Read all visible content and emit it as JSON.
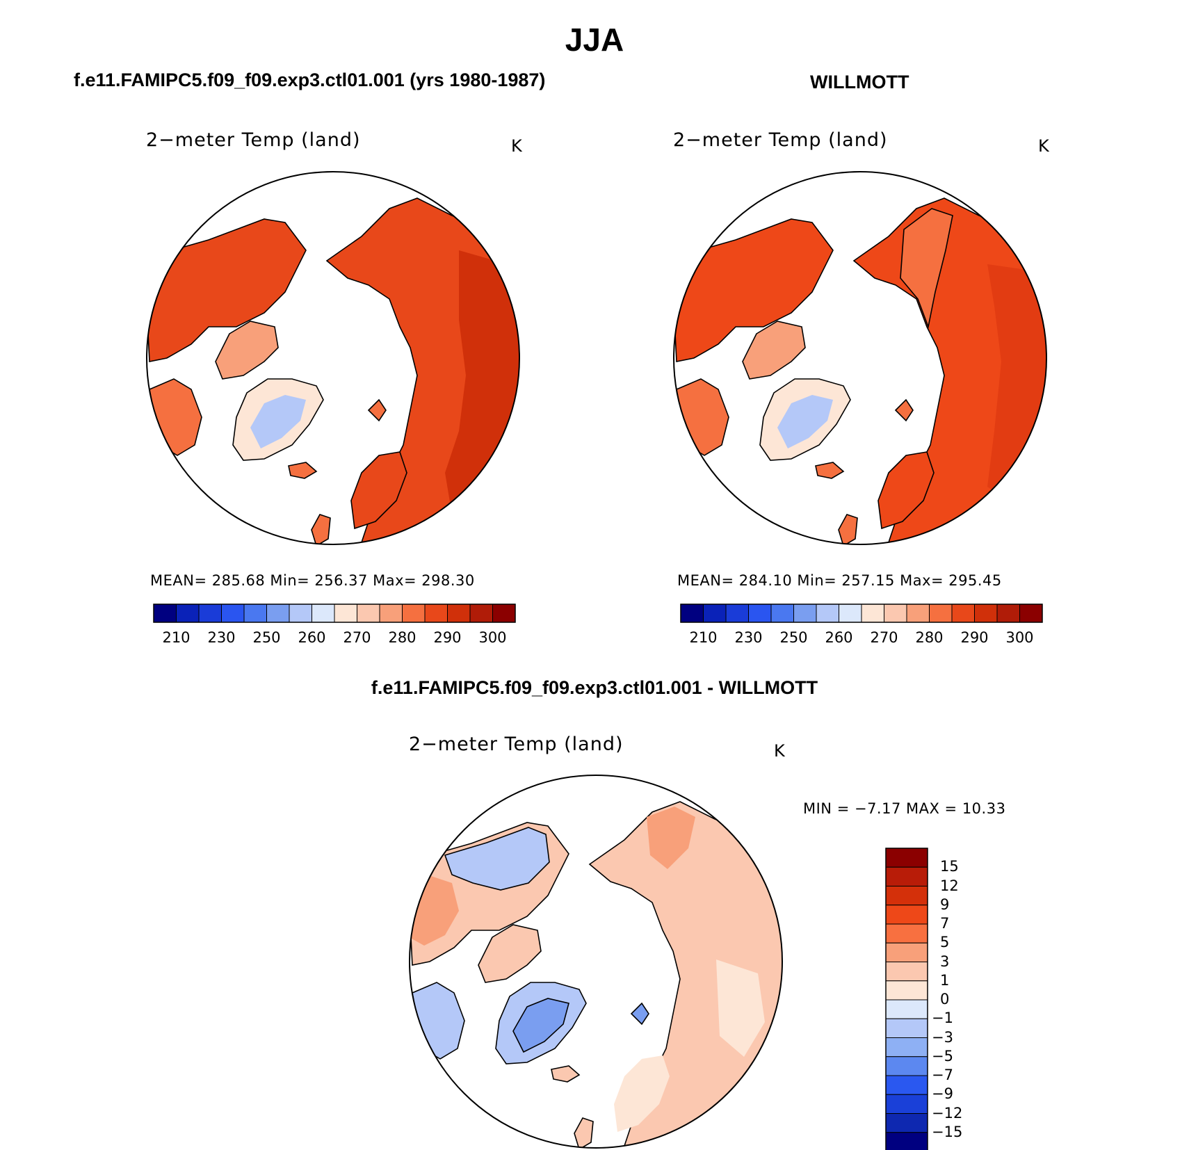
{
  "figure": {
    "season_title": "JJA",
    "model_title": "f.e11.FAMIPC5.f09_f09.exp3.ctl01.001 (yrs 1980-1987)",
    "obs_title": "WILLMOTT",
    "diff_title": "f.e11.FAMIPC5.f09_f09.exp3.ctl01.001 - WILLMOTT"
  },
  "panels": {
    "model": {
      "variable": "2−meter Temp (land)",
      "units": "K",
      "stats": "MEAN= 285.68   Min= 256.37   Max= 298.30"
    },
    "obs": {
      "variable": "2−meter Temp (land)",
      "units": "K",
      "stats": "MEAN= 284.10   Min= 257.15   Max= 295.45"
    },
    "diff": {
      "variable": "2−meter Temp (land)",
      "units": "K",
      "minmax": "MIN =   −7.17  MAX =   10.33"
    }
  },
  "colorbars": {
    "absolute": {
      "colors": [
        "#000080",
        "#0a22b8",
        "#1a3cd8",
        "#2a55f0",
        "#4a78f0",
        "#7a9ef0",
        "#b4c8f8",
        "#dce8fb",
        "#fde6d6",
        "#fbc8b0",
        "#f8a07a",
        "#f57040",
        "#e8481a",
        "#d0300a",
        "#b01c08",
        "#8b0000"
      ],
      "tick_labels": [
        "210",
        "230",
        "250",
        "260",
        "270",
        "280",
        "290",
        "300"
      ]
    },
    "difference": {
      "colors": [
        "#8b0000",
        "#b81c08",
        "#d4300a",
        "#ee4818",
        "#f87040",
        "#f8a07a",
        "#fbc8b0",
        "#fde6d6",
        "#dce8fb",
        "#b4c8f8",
        "#8eb0f4",
        "#5c88f0",
        "#2a58f0",
        "#1a40d8",
        "#0e28b0",
        "#000080"
      ],
      "tick_labels": [
        "15",
        "12",
        "9",
        "7",
        "5",
        "3",
        "1",
        "0",
        "−1",
        "−3",
        "−5",
        "−7",
        "−9",
        "−12",
        "−15"
      ]
    }
  },
  "map_colors": {
    "ocean": "#ffffff",
    "coast": "#000000",
    "model_land": "#e8481a",
    "model_warm": "#d0300a",
    "model_hot": "#b01c08",
    "model_cool": "#f57040",
    "model_cold": "#f8a07a",
    "greenland_edge": "#fde6d6",
    "greenland_core": "#b4c8f8",
    "obs_land": "#ee4818",
    "obs_warm": "#e23c12",
    "obs_cool": "#f57040",
    "obs_cold": "#f8a07a",
    "diff_land": "#fbc8b0",
    "diff_warm": "#f8a07a",
    "diff_neutral": "#fde6d6",
    "diff_cool": "#b4c8f8",
    "diff_cold": "#7a9ef0"
  }
}
